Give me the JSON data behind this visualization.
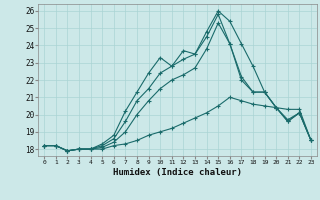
{
  "title": "",
  "xlabel": "Humidex (Indice chaleur)",
  "bg_color": "#cce8e8",
  "line_color": "#1a6b6b",
  "grid_color": "#aad4d4",
  "xlim": [
    -0.5,
    23.5
  ],
  "ylim": [
    17.6,
    26.4
  ],
  "xticks": [
    0,
    1,
    2,
    3,
    4,
    5,
    6,
    7,
    8,
    9,
    10,
    11,
    12,
    13,
    14,
    15,
    16,
    17,
    18,
    19,
    20,
    21,
    22,
    23
  ],
  "yticks": [
    18,
    19,
    20,
    21,
    22,
    23,
    24,
    25,
    26
  ],
  "series": [
    [
      18.2,
      18.2,
      17.9,
      18.0,
      18.0,
      18.0,
      18.2,
      18.3,
      18.5,
      18.8,
      19.0,
      19.2,
      19.5,
      19.8,
      20.1,
      20.5,
      21.0,
      20.8,
      20.6,
      20.5,
      20.4,
      20.3,
      20.3,
      18.5
    ],
    [
      18.2,
      18.2,
      17.9,
      18.0,
      18.0,
      18.1,
      18.4,
      19.0,
      20.0,
      20.8,
      21.5,
      22.0,
      22.3,
      22.7,
      23.8,
      25.3,
      24.1,
      22.2,
      21.3,
      21.3,
      20.4,
      19.6,
      20.1,
      18.5
    ],
    [
      18.2,
      18.2,
      17.9,
      18.0,
      18.0,
      18.2,
      18.6,
      19.6,
      20.8,
      21.5,
      22.4,
      22.8,
      23.2,
      23.5,
      24.5,
      25.8,
      24.1,
      22.0,
      21.3,
      21.3,
      20.4,
      19.6,
      20.1,
      18.5
    ],
    [
      18.2,
      18.2,
      17.9,
      18.0,
      18.0,
      18.3,
      18.8,
      20.2,
      21.3,
      22.4,
      23.3,
      22.8,
      23.7,
      23.5,
      24.8,
      26.0,
      25.4,
      24.1,
      22.8,
      21.3,
      20.4,
      19.7,
      20.1,
      18.5
    ]
  ]
}
